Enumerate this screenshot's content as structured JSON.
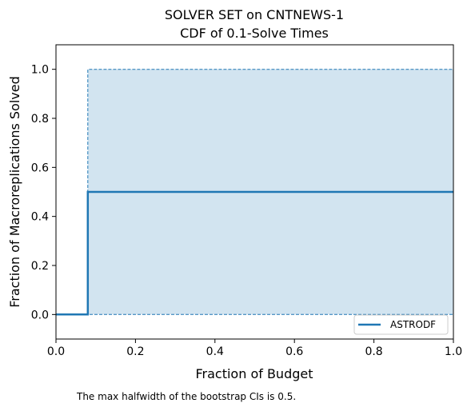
{
  "chart_data": {
    "type": "line",
    "title_lines": [
      "SOLVER SET on CNTNEWS-1",
      "CDF of 0.1-Solve Times"
    ],
    "xlabel": "Fraction of Budget",
    "ylabel": "Fraction of Macroreplications Solved",
    "xlim": [
      0.0,
      1.0
    ],
    "ylim": [
      -0.1,
      1.1
    ],
    "xticks": [
      0.0,
      0.2,
      0.4,
      0.6,
      0.8,
      1.0
    ],
    "xtick_labels": [
      "0.0",
      "0.2",
      "0.4",
      "0.6",
      "0.8",
      "1.0"
    ],
    "yticks": [
      0.0,
      0.2,
      0.4,
      0.6,
      0.8,
      1.0
    ],
    "ytick_labels": [
      "0.0",
      "0.2",
      "0.4",
      "0.6",
      "0.8",
      "1.0"
    ],
    "grid": false,
    "legend_position": "lower-right",
    "series": [
      {
        "name": "ASTRODF",
        "color": "#1f77b4",
        "step": "post",
        "x": [
          0.0,
          0.08,
          1.0
        ],
        "y": [
          0.0,
          0.5,
          0.5
        ],
        "ci_lower": {
          "x": [
            0.0,
            0.08,
            1.0
          ],
          "y": [
            0.0,
            0.0,
            0.0
          ]
        },
        "ci_upper": {
          "x": [
            0.0,
            0.08,
            1.0
          ],
          "y": [
            0.0,
            1.0,
            1.0
          ]
        },
        "ci_fill_color": "#1f77b4"
      }
    ]
  },
  "footnote": "The max halfwidth of the bootstrap CIs is 0.5."
}
